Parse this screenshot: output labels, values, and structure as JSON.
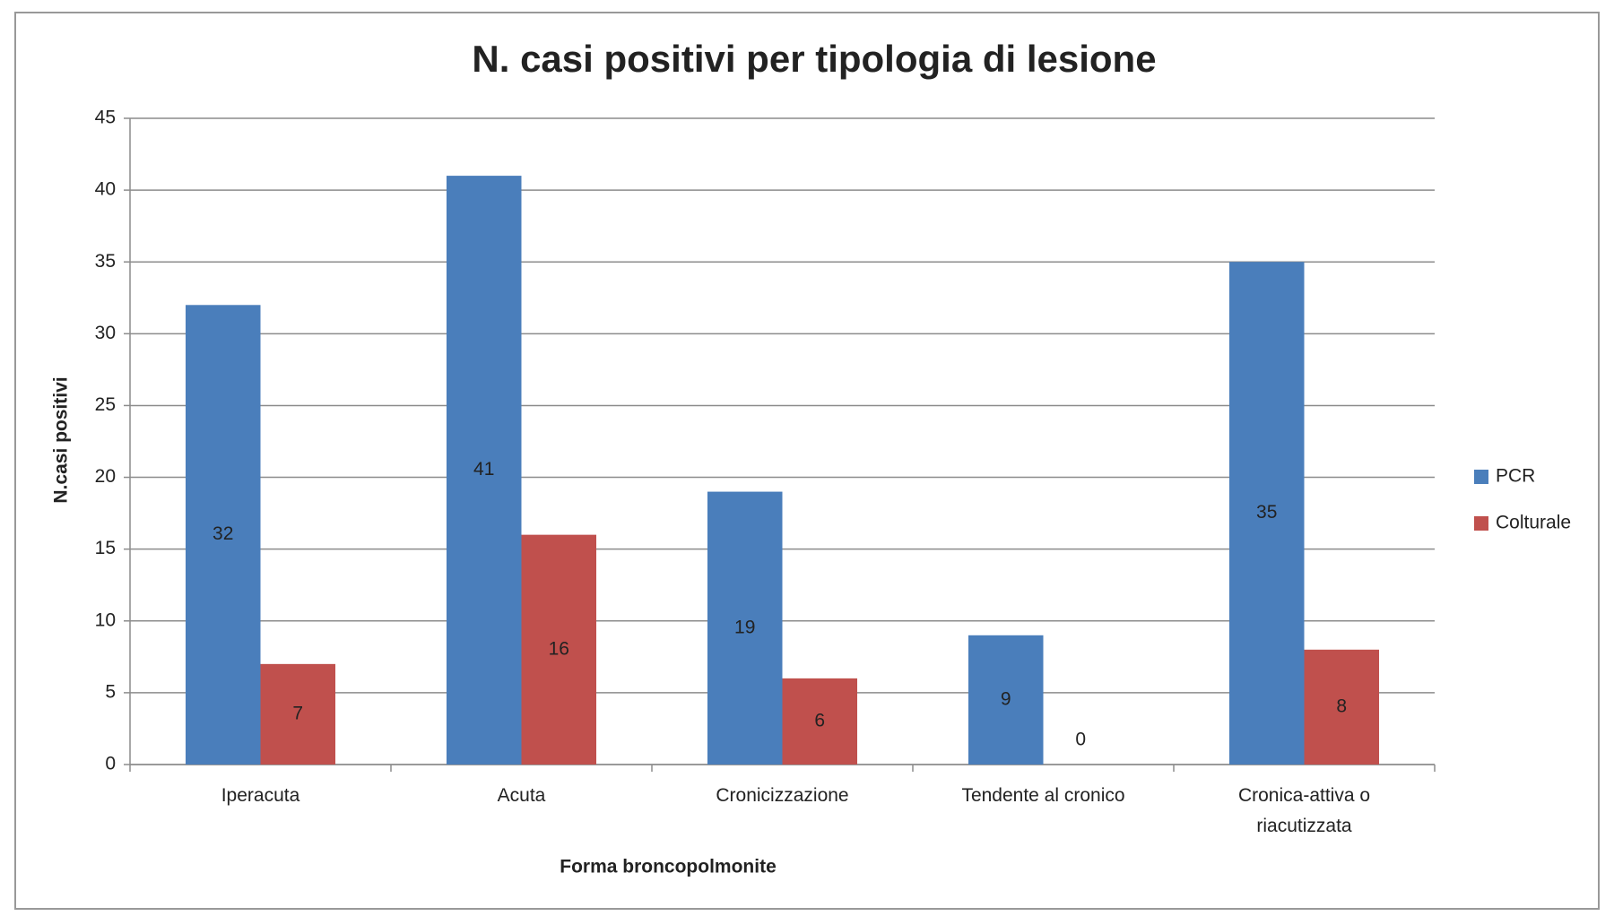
{
  "chart_data": {
    "type": "bar",
    "title": "N. casi positivi per tipologia di lesione",
    "x_label": "Forma broncopolmonite",
    "y_label": "N.casi positivi",
    "categories": [
      "Iperacuta",
      "Acuta",
      "Cronicizzazione",
      "Tendente al cronico",
      "Cronica-attiva o riacutizzata"
    ],
    "series": [
      {
        "name": "PCR",
        "color": "#4a7ebb",
        "values": [
          32,
          41,
          19,
          9,
          35
        ]
      },
      {
        "name": "Colturale",
        "color": "#c0504d",
        "values": [
          7,
          16,
          6,
          0,
          8
        ]
      }
    ],
    "ylim": [
      0,
      45
    ],
    "yticks": [
      0,
      5,
      10,
      15,
      20,
      25,
      30,
      35,
      40,
      45
    ],
    "grid": true,
    "legend": "right"
  }
}
